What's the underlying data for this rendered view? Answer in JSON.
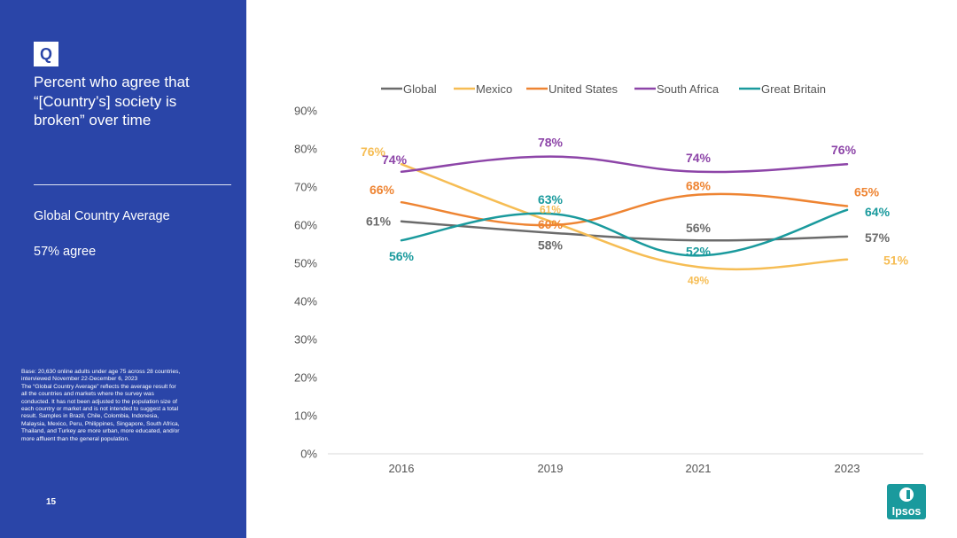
{
  "sidebar": {
    "badge": "Q",
    "question": "Percent who agree that\n“[Country’s] society is\nbroken” over time",
    "avg_label": "Global Country Average",
    "avg_value": "57% agree",
    "base_note": "Base: 20,630 online adults under age 75 across 28 countries,\ninterviewed November 22-December 6, 2023\nThe “Global Country Average” reflects the average result for\nall the countries and markets where the survey was\nconducted. It has not been adjusted to the population size of\neach country or market and is not intended to suggest a total\nresult. Samples in Brazil, Chile, Colombia, Indonesia,\nMalaysia, Mexico, Peru, Philippines, Singapore, South Africa,\nThailand, and Turkey are more urban, more educated, and/or\nmore affluent than the general population.",
    "page_number": "15"
  },
  "logo": {
    "text": "Ipsos"
  },
  "chart_data": {
    "type": "line",
    "categories": [
      "2016",
      "2019",
      "2021",
      "2023"
    ],
    "ylim": [
      0,
      90
    ],
    "yticks": [
      0,
      10,
      20,
      30,
      40,
      50,
      60,
      70,
      80,
      90
    ],
    "ytick_labels": [
      "0%",
      "10%",
      "20%",
      "30%",
      "40%",
      "50%",
      "60%",
      "70%",
      "80%",
      "90%"
    ],
    "legend_position": "top",
    "grid": false,
    "series": [
      {
        "name": "Global",
        "color": "#6b6b6b",
        "values": [
          61,
          58,
          56,
          57
        ],
        "labels": [
          "61%",
          "58%",
          "56%",
          "57%"
        ]
      },
      {
        "name": "Mexico",
        "color": "#f6bd54",
        "values": [
          76,
          61,
          49,
          51
        ],
        "labels": [
          "76%",
          "61%",
          "49%",
          "51%"
        ]
      },
      {
        "name": "United States",
        "color": "#ee8432",
        "values": [
          66,
          60,
          68,
          65
        ],
        "labels": [
          "66%",
          "60%",
          "68%",
          "65%"
        ]
      },
      {
        "name": "South Africa",
        "color": "#8d45a8",
        "values": [
          74,
          78,
          74,
          76
        ],
        "labels": [
          "74%",
          "78%",
          "74%",
          "76%"
        ]
      },
      {
        "name": "Great Britain",
        "color": "#1a9a9d",
        "values": [
          56,
          63,
          52,
          64
        ],
        "labels": [
          "56%",
          "63%",
          "52%",
          "64%"
        ]
      }
    ]
  }
}
